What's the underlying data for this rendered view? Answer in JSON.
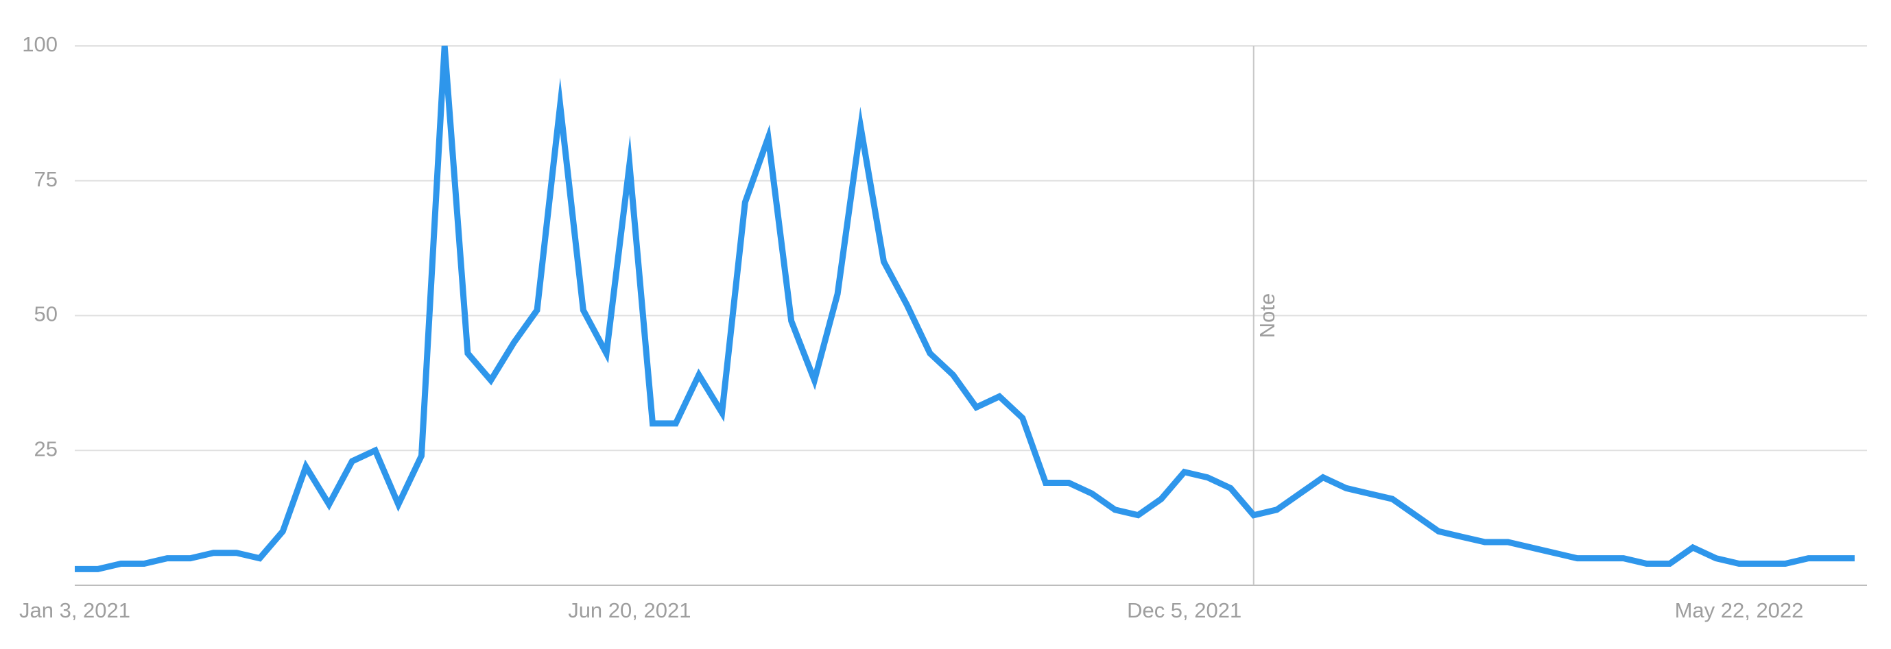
{
  "chart_data": {
    "type": "line",
    "categories": [
      "Jan 3, 2021",
      null,
      null,
      null,
      null,
      null,
      null,
      null,
      null,
      null,
      null,
      null,
      null,
      null,
      null,
      null,
      null,
      null,
      null,
      null,
      null,
      null,
      null,
      null,
      "Jun 20, 2021",
      null,
      null,
      null,
      null,
      null,
      null,
      null,
      null,
      null,
      null,
      null,
      null,
      null,
      null,
      null,
      null,
      null,
      null,
      null,
      null,
      null,
      null,
      null,
      "Dec 5, 2021",
      null,
      null,
      null,
      null,
      null,
      null,
      null,
      null,
      null,
      null,
      null,
      null,
      null,
      null,
      null,
      null,
      null,
      null,
      null,
      null,
      null,
      null,
      null,
      "May 22, 2022",
      null,
      null,
      null,
      null,
      null
    ],
    "series": [
      {
        "color": "#2e96eb",
        "values": [
          3,
          3,
          4,
          4,
          5,
          5,
          6,
          6,
          5,
          10,
          22,
          15,
          23,
          25,
          15,
          24,
          100,
          43,
          38,
          45,
          51,
          89,
          51,
          43,
          78,
          30,
          30,
          39,
          32,
          71,
          83,
          49,
          38,
          54,
          85,
          60,
          52,
          43,
          39,
          33,
          35,
          31,
          19,
          19,
          17,
          14,
          13,
          16,
          21,
          20,
          18,
          13,
          14,
          17,
          20,
          18,
          17,
          16,
          13,
          10,
          9,
          8,
          8,
          7,
          6,
          5,
          5,
          5,
          4,
          4,
          7,
          5,
          4,
          4,
          4,
          5,
          5,
          5
        ]
      }
    ],
    "ylim": [
      0,
      100
    ],
    "yticks": [
      25,
      50,
      75,
      100
    ],
    "grid": true,
    "annotation": {
      "text": "Note",
      "category_index": 51
    }
  }
}
